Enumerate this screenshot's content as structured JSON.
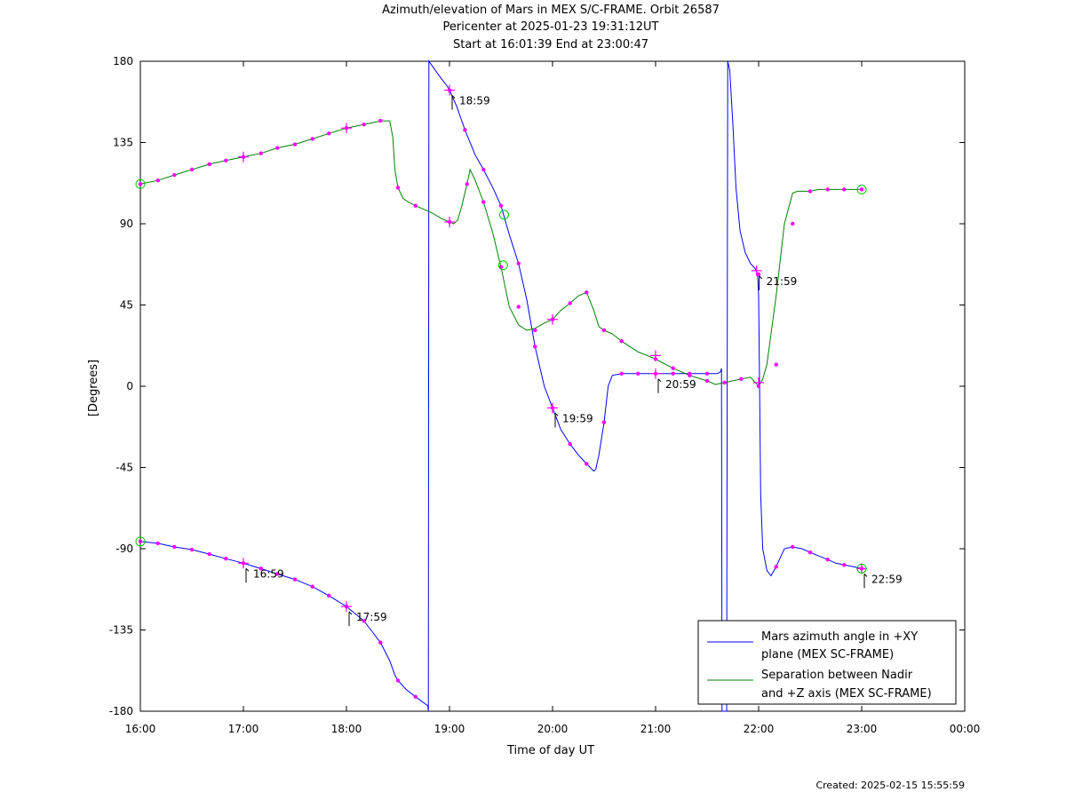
{
  "chart_data": {
    "type": "line",
    "title": "Azimuth/elevation of Mars in MEX S/C-FRAME.  Orbit 26587",
    "subtitle_lines": [
      "Pericenter at 2025-01-23 19:31:12UT",
      "Start at 16:01:39 End at 23:00:47"
    ],
    "xlabel": "Time of day UT",
    "ylabel": "[Degrees]",
    "x_unit": "hours",
    "xlim": [
      16,
      24
    ],
    "ylim": [
      -180,
      180
    ],
    "x_ticks": [
      16,
      17,
      18,
      19,
      20,
      21,
      22,
      23,
      24
    ],
    "x_tick_labels": [
      "16:00",
      "17:00",
      "18:00",
      "19:00",
      "20:00",
      "21:00",
      "22:00",
      "23:00",
      "00:00"
    ],
    "y_ticks": [
      -180,
      -135,
      -90,
      -45,
      0,
      45,
      90,
      135,
      180
    ],
    "y_tick_labels": [
      "-180",
      "-135",
      "-90",
      "-45",
      "0",
      "45",
      "90",
      "135",
      "180"
    ],
    "legend_position": "bottom-right",
    "series": [
      {
        "name": "Mars azimuth angle in +XY plane (MEX SC-FRAME)",
        "legend_lines": [
          "Mars azimuth angle in +XY",
          "plane (MEX SC-FRAME)"
        ],
        "color": "#0000ff",
        "x": [
          16.0,
          16.17,
          16.33,
          16.5,
          16.67,
          16.83,
          17.0,
          17.17,
          17.33,
          17.5,
          17.67,
          17.83,
          18.0,
          18.17,
          18.25,
          18.33,
          18.42,
          18.47,
          18.5,
          18.58,
          18.67,
          18.79,
          18.795,
          18.8,
          18.9,
          18.98,
          19.0,
          19.07,
          19.15,
          19.25,
          19.33,
          19.42,
          19.5,
          19.58,
          19.67,
          19.75,
          19.83,
          19.92,
          20.0,
          20.08,
          20.17,
          20.25,
          20.33,
          20.4,
          20.42,
          20.45,
          20.5,
          20.54,
          20.58,
          20.67,
          20.75,
          20.83,
          20.92,
          21.0,
          21.17,
          21.33,
          21.5,
          21.6,
          21.63,
          21.64,
          21.645,
          21.67,
          21.69,
          21.7,
          21.72,
          21.75,
          21.78,
          21.82,
          21.87,
          21.92,
          21.97,
          21.99,
          22.0,
          22.02,
          22.04,
          22.08,
          22.12,
          22.17,
          22.25,
          22.33,
          22.42,
          22.5,
          22.58,
          22.67,
          22.75,
          22.83,
          22.92,
          23.0,
          23.01
        ],
        "y": [
          -86,
          -87,
          -89,
          -90.5,
          -93,
          -95.5,
          -98,
          -101,
          -104,
          -107,
          -111,
          -116,
          -122,
          -130,
          -136,
          -142,
          -152,
          -160,
          -163,
          -168,
          -172,
          -177,
          -180,
          180,
          172,
          166,
          164,
          155,
          142,
          128,
          120,
          110,
          100,
          84,
          68,
          48,
          22,
          0,
          -12,
          -24,
          -32,
          -38,
          -43,
          -47,
          -46,
          -38,
          -20,
          0,
          6,
          7,
          7,
          7,
          7,
          7,
          7,
          7,
          7,
          7,
          8,
          10,
          -180,
          -180,
          -180,
          180,
          175,
          145,
          110,
          86,
          74,
          68,
          65,
          62,
          50,
          -60,
          -90,
          -102,
          -105,
          -100,
          -90,
          -89,
          -90,
          -92,
          -94,
          -96,
          -98,
          -99,
          -100,
          -101,
          -101
        ]
      },
      {
        "name": "Separation between Nadir and +Z axis (MEX SC-FRAME)",
        "legend_lines": [
          "Separation between Nadir",
          "and +Z axis (MEX SC-FRAME)"
        ],
        "color": "#008000",
        "x": [
          16.0,
          16.17,
          16.33,
          16.5,
          16.67,
          16.83,
          17.0,
          17.17,
          17.33,
          17.5,
          17.67,
          17.83,
          18.0,
          18.17,
          18.33,
          18.42,
          18.45,
          18.47,
          18.5,
          18.55,
          18.6,
          18.67,
          18.75,
          18.83,
          18.92,
          19.0,
          19.04,
          19.08,
          19.12,
          19.17,
          19.2,
          19.25,
          19.33,
          19.42,
          19.5,
          19.58,
          19.67,
          19.75,
          19.83,
          19.92,
          20.0,
          20.08,
          20.17,
          20.25,
          20.33,
          20.4,
          20.45,
          20.5,
          20.58,
          20.67,
          20.75,
          20.83,
          20.92,
          21.0,
          21.17,
          21.33,
          21.5,
          21.58,
          21.67,
          21.75,
          21.83,
          21.92,
          22.0,
          22.04,
          22.08,
          22.17,
          22.25,
          22.33,
          22.38,
          22.42,
          22.5,
          22.58,
          22.67,
          22.75,
          22.83,
          22.92,
          23.0,
          23.01
        ],
        "y": [
          112,
          114,
          117,
          120,
          123,
          125,
          127,
          129,
          132,
          134,
          137,
          140,
          143,
          145,
          147,
          147,
          138,
          120,
          110,
          104,
          102,
          100,
          98,
          96,
          93,
          91,
          90,
          92,
          100,
          112,
          120,
          114,
          102,
          85,
          66,
          44,
          34,
          31,
          32,
          35,
          37,
          42,
          46,
          50,
          52,
          42,
          33,
          31,
          29,
          25,
          22,
          19,
          17,
          15,
          10,
          6,
          3,
          1,
          2,
          3,
          4,
          5,
          0,
          4,
          12,
          50,
          90,
          107,
          108,
          108,
          108,
          109,
          109,
          109,
          109,
          109,
          109,
          109
        ]
      }
    ],
    "dot_markers": {
      "color": "#ff00ff",
      "points": [
        [
          16.0,
          -86
        ],
        [
          16.17,
          -87
        ],
        [
          16.33,
          -89
        ],
        [
          16.5,
          -90.5
        ],
        [
          16.67,
          -93
        ],
        [
          16.83,
          -95.5
        ],
        [
          17.0,
          -98
        ],
        [
          17.17,
          -101
        ],
        [
          17.33,
          -104
        ],
        [
          17.5,
          -107
        ],
        [
          17.67,
          -111
        ],
        [
          17.83,
          -116
        ],
        [
          18.0,
          -122
        ],
        [
          18.17,
          -130
        ],
        [
          18.33,
          -142
        ],
        [
          18.5,
          -163
        ],
        [
          18.67,
          -172
        ],
        [
          19.0,
          164
        ],
        [
          19.15,
          142
        ],
        [
          19.33,
          120
        ],
        [
          19.5,
          100
        ],
        [
          19.67,
          68
        ],
        [
          19.83,
          22
        ],
        [
          20.0,
          -12
        ],
        [
          20.17,
          -32
        ],
        [
          20.33,
          -43
        ],
        [
          20.5,
          -20
        ],
        [
          20.67,
          7
        ],
        [
          20.83,
          7
        ],
        [
          21.0,
          7
        ],
        [
          21.17,
          7
        ],
        [
          21.33,
          7
        ],
        [
          21.5,
          7
        ],
        [
          22.0,
          62
        ],
        [
          22.17,
          -100
        ],
        [
          22.33,
          -89
        ],
        [
          22.5,
          -92
        ],
        [
          22.67,
          -96
        ],
        [
          22.83,
          -99
        ],
        [
          23.0,
          -101
        ],
        [
          16.0,
          112
        ],
        [
          16.17,
          114
        ],
        [
          16.33,
          117
        ],
        [
          16.5,
          120
        ],
        [
          16.67,
          123
        ],
        [
          16.83,
          125
        ],
        [
          17.0,
          127
        ],
        [
          17.17,
          129
        ],
        [
          17.33,
          132
        ],
        [
          17.5,
          134
        ],
        [
          17.67,
          137
        ],
        [
          17.83,
          140
        ],
        [
          18.0,
          143
        ],
        [
          18.17,
          145
        ],
        [
          18.33,
          147
        ],
        [
          18.5,
          110
        ],
        [
          18.67,
          100
        ],
        [
          19.0,
          91
        ],
        [
          19.17,
          112
        ],
        [
          19.33,
          102
        ],
        [
          19.5,
          66
        ],
        [
          19.67,
          44
        ],
        [
          19.83,
          31
        ],
        [
          20.0,
          37
        ],
        [
          20.17,
          46
        ],
        [
          20.33,
          52
        ],
        [
          20.5,
          31
        ],
        [
          20.67,
          25
        ],
        [
          21.0,
          15
        ],
        [
          21.17,
          10
        ],
        [
          21.33,
          6
        ],
        [
          21.5,
          3
        ],
        [
          21.67,
          2
        ],
        [
          21.83,
          4
        ],
        [
          22.0,
          0
        ],
        [
          22.17,
          12
        ],
        [
          22.33,
          90
        ],
        [
          22.5,
          108
        ],
        [
          22.67,
          109
        ],
        [
          22.83,
          109
        ],
        [
          23.0,
          109
        ]
      ]
    },
    "hour_markers": {
      "color": "#ff00ff",
      "points": [
        [
          17.0,
          -98
        ],
        [
          18.0,
          -122
        ],
        [
          19.0,
          164
        ],
        [
          20.0,
          -12
        ],
        [
          21.0,
          7
        ],
        [
          21.98,
          64
        ],
        [
          23.0,
          -101
        ],
        [
          17.0,
          127
        ],
        [
          18.0,
          143
        ],
        [
          19.0,
          91
        ],
        [
          20.0,
          37
        ],
        [
          21.0,
          17
        ],
        [
          22.0,
          2
        ]
      ]
    },
    "endpoint_markers": {
      "color": "#00cc00",
      "points": [
        [
          16.0,
          -86
        ],
        [
          16.0,
          112
        ],
        [
          19.53,
          95
        ],
        [
          19.52,
          67
        ],
        [
          23.0,
          -101
        ],
        [
          23.0,
          109
        ]
      ]
    },
    "annotations": [
      {
        "text": "16:59",
        "x": 17.0,
        "y": -98
      },
      {
        "text": "17:59",
        "x": 18.0,
        "y": -122
      },
      {
        "text": "18:59",
        "x": 19.0,
        "y": 164
      },
      {
        "text": "19:59",
        "x": 20.0,
        "y": -12
      },
      {
        "text": "20:59",
        "x": 21.0,
        "y": 7
      },
      {
        "text": "21:59",
        "x": 21.98,
        "y": 64
      },
      {
        "text": "22:59",
        "x": 23.0,
        "y": -101
      }
    ]
  },
  "footer": {
    "created": "Created: 2025-02-15 15:55:59"
  }
}
